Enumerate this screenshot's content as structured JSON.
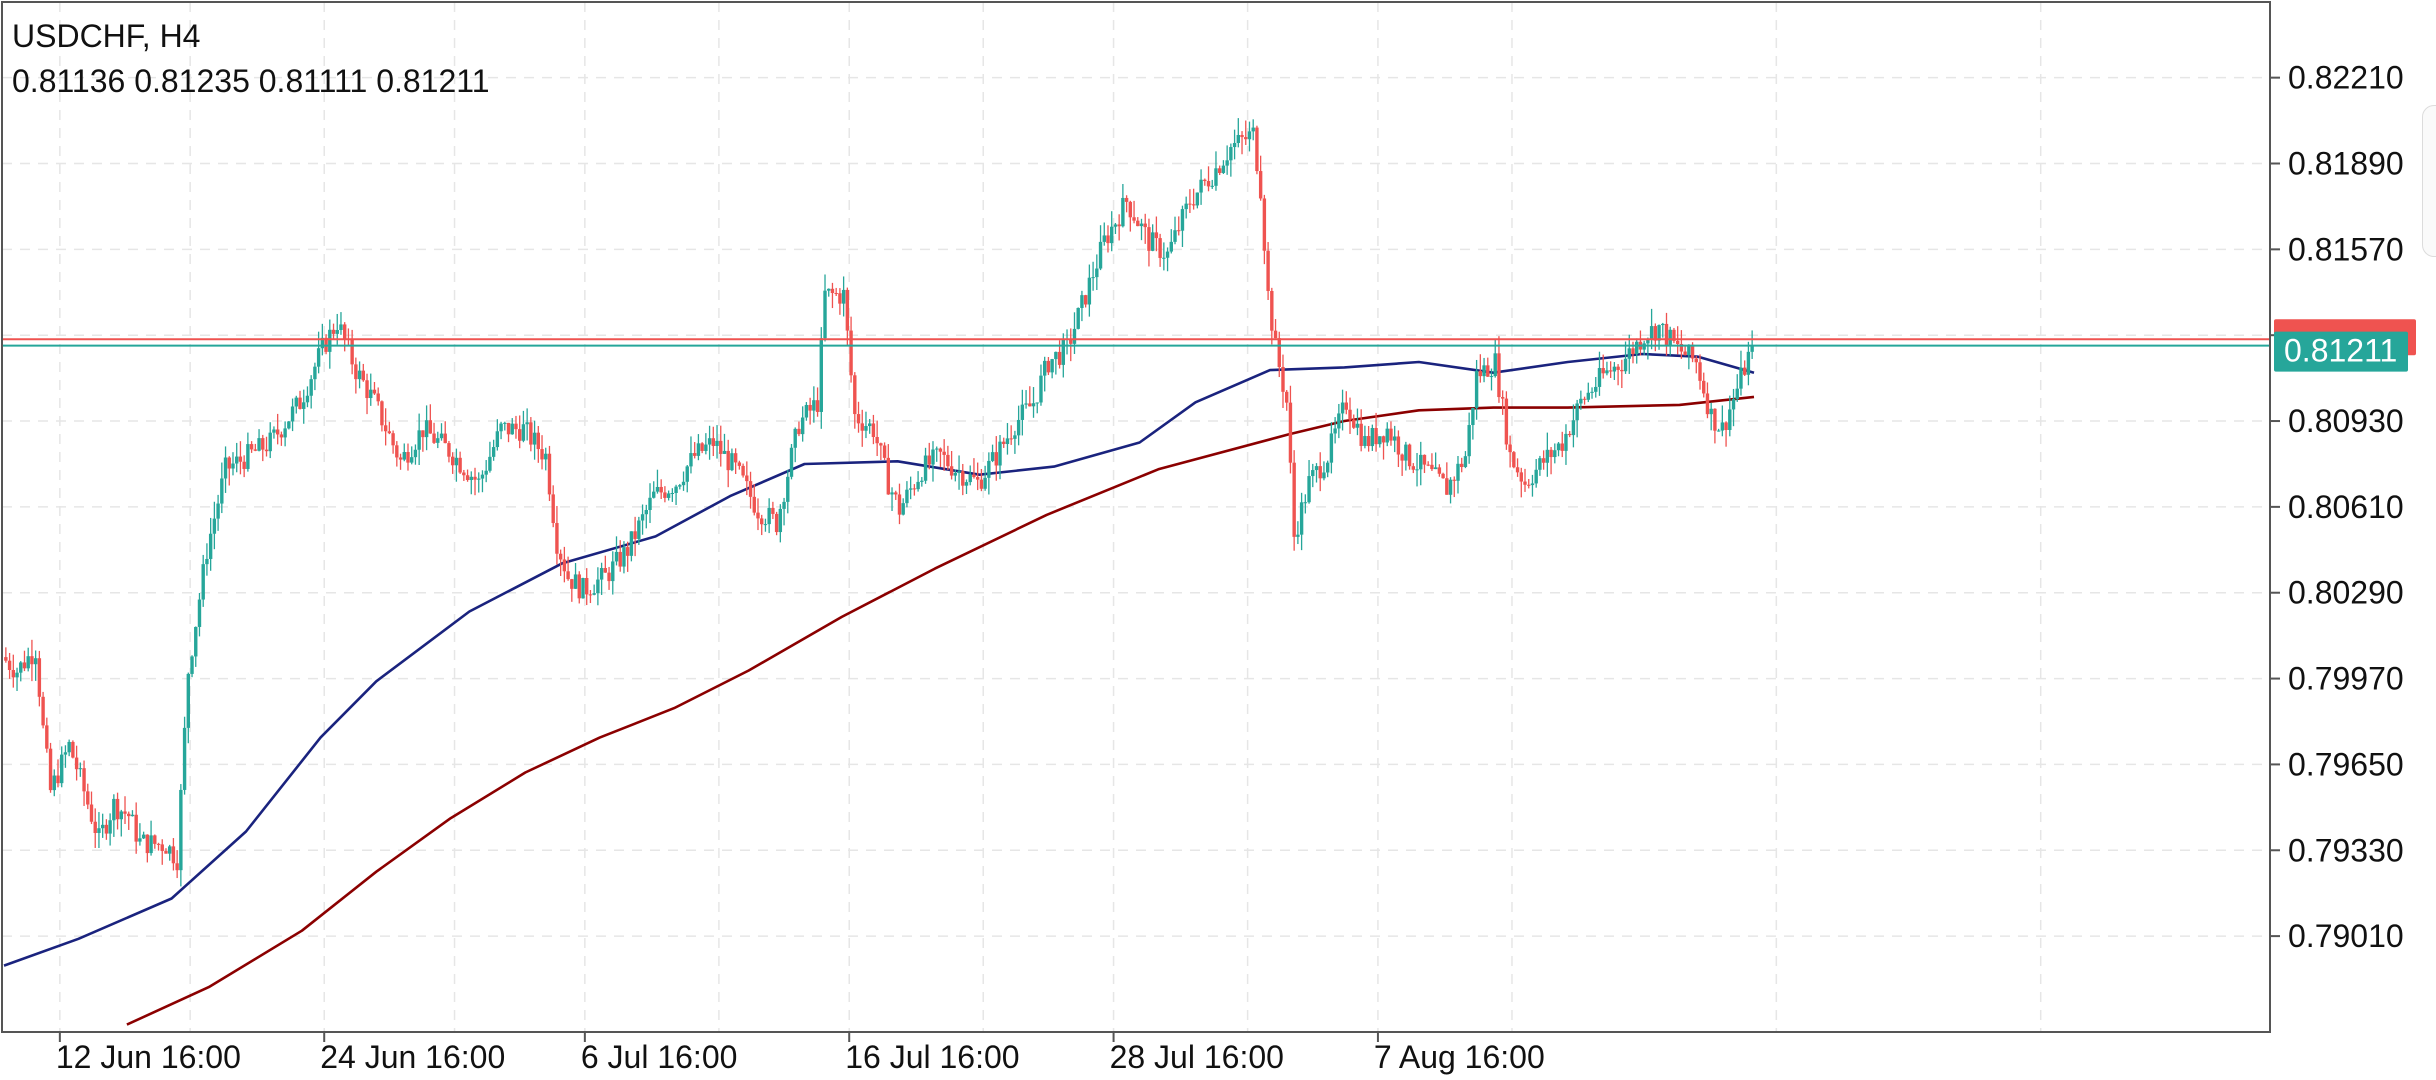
{
  "header": {
    "symbol_timeframe": "USDCHF, H4",
    "ohlc": "0.81136 0.81235 0.81111 0.81211"
  },
  "colors": {
    "bull": "#26a69a",
    "bear": "#ef5350",
    "ma_fast": "#1a237e",
    "ma_slow": "#8b0000",
    "grid": "#e6e6e6",
    "axis": "#555555",
    "ask_line": "#ef5350",
    "bid_line": "#26a69a"
  },
  "chart_data": {
    "type": "candlestick",
    "symbol": "USDCHF",
    "timeframe": "H4",
    "y_ticks": [
      0.8221,
      0.8189,
      0.8157,
      0.8125,
      0.8093,
      0.8061,
      0.8029,
      0.7997,
      0.7965,
      0.7933,
      0.7901
    ],
    "y_tick_labels": [
      "0.82210",
      "0.81890",
      "0.81570",
      "0.81250",
      "0.80930",
      "0.80610",
      "0.80290",
      "0.79970",
      "0.79650",
      "0.79330",
      "0.79010"
    ],
    "ylim": [
      0.7866,
      0.8241
    ],
    "x_tick_labels": [
      "12 Jun 16:00",
      "24 Jun 16:00",
      "6 Jul 16:00",
      "16 Jul 16:00",
      "28 Jul 16:00",
      "7 Aug 16:00"
    ],
    "x_tick_bar_index": [
      15,
      86,
      156,
      227,
      298,
      369
    ],
    "bar_count": 470,
    "current_bid": 0.81211,
    "current_bid_label": "0.81211",
    "current_ask": 0.81235,
    "price_path": [
      [
        0,
        0.8005
      ],
      [
        4,
        0.8
      ],
      [
        9,
        0.8008
      ],
      [
        11,
        0.7978
      ],
      [
        13,
        0.7955
      ],
      [
        18,
        0.7972
      ],
      [
        20,
        0.7964
      ],
      [
        26,
        0.7937
      ],
      [
        30,
        0.795
      ],
      [
        34,
        0.7946
      ],
      [
        37,
        0.7936
      ],
      [
        44,
        0.7935
      ],
      [
        47,
        0.793
      ],
      [
        50,
        0.8
      ],
      [
        55,
        0.8045
      ],
      [
        60,
        0.8075
      ],
      [
        66,
        0.808
      ],
      [
        72,
        0.8085
      ],
      [
        80,
        0.81
      ],
      [
        86,
        0.812
      ],
      [
        90,
        0.813
      ],
      [
        95,
        0.8112
      ],
      [
        100,
        0.81
      ],
      [
        107,
        0.8078
      ],
      [
        113,
        0.809
      ],
      [
        120,
        0.8082
      ],
      [
        128,
        0.807
      ],
      [
        134,
        0.809
      ],
      [
        140,
        0.809
      ],
      [
        146,
        0.808
      ],
      [
        149,
        0.8048
      ],
      [
        152,
        0.8035
      ],
      [
        156,
        0.803
      ],
      [
        162,
        0.8035
      ],
      [
        168,
        0.8045
      ],
      [
        175,
        0.8065
      ],
      [
        181,
        0.807
      ],
      [
        186,
        0.808
      ],
      [
        191,
        0.8085
      ],
      [
        197,
        0.8075
      ],
      [
        203,
        0.806
      ],
      [
        208,
        0.8055
      ],
      [
        214,
        0.8092
      ],
      [
        219,
        0.81
      ],
      [
        221,
        0.814
      ],
      [
        226,
        0.814
      ],
      [
        229,
        0.8095
      ],
      [
        234,
        0.809
      ],
      [
        238,
        0.807
      ],
      [
        241,
        0.806
      ],
      [
        247,
        0.8075
      ],
      [
        252,
        0.808
      ],
      [
        256,
        0.8075
      ],
      [
        262,
        0.807
      ],
      [
        267,
        0.808
      ],
      [
        272,
        0.8092
      ],
      [
        277,
        0.81
      ],
      [
        281,
        0.8115
      ],
      [
        286,
        0.812
      ],
      [
        291,
        0.814
      ],
      [
        296,
        0.816
      ],
      [
        302,
        0.8175
      ],
      [
        308,
        0.816
      ],
      [
        313,
        0.8155
      ],
      [
        319,
        0.8175
      ],
      [
        325,
        0.8185
      ],
      [
        330,
        0.8195
      ],
      [
        336,
        0.82
      ],
      [
        338,
        0.818
      ],
      [
        340,
        0.814
      ],
      [
        342,
        0.812
      ],
      [
        345,
        0.81
      ],
      [
        347,
        0.805
      ],
      [
        351,
        0.807
      ],
      [
        356,
        0.808
      ],
      [
        361,
        0.81
      ],
      [
        366,
        0.8085
      ],
      [
        372,
        0.809
      ],
      [
        377,
        0.808
      ],
      [
        382,
        0.8075
      ],
      [
        388,
        0.8068
      ],
      [
        393,
        0.808
      ],
      [
        396,
        0.811
      ],
      [
        401,
        0.8115
      ],
      [
        405,
        0.808
      ],
      [
        409,
        0.807
      ],
      [
        414,
        0.8078
      ],
      [
        419,
        0.8085
      ],
      [
        424,
        0.81
      ],
      [
        430,
        0.811
      ],
      [
        435,
        0.8115
      ],
      [
        441,
        0.8125
      ],
      [
        445,
        0.8128
      ],
      [
        450,
        0.812
      ],
      [
        455,
        0.8115
      ],
      [
        459,
        0.8095
      ],
      [
        462,
        0.809
      ],
      [
        466,
        0.8105
      ],
      [
        470,
        0.8121
      ]
    ],
    "series": [
      {
        "kind": "moving-average",
        "color": "#1a237e",
        "points": [
          [
            0,
            0.789
          ],
          [
            20,
            0.79
          ],
          [
            45,
            0.7915
          ],
          [
            65,
            0.794
          ],
          [
            85,
            0.7975
          ],
          [
            100,
            0.7996
          ],
          [
            125,
            0.8022
          ],
          [
            150,
            0.804
          ],
          [
            175,
            0.805
          ],
          [
            195,
            0.8065
          ],
          [
            215,
            0.8077
          ],
          [
            240,
            0.8078
          ],
          [
            262,
            0.8073
          ],
          [
            282,
            0.8076
          ],
          [
            305,
            0.8085
          ],
          [
            320,
            0.81
          ],
          [
            340,
            0.8112
          ],
          [
            360,
            0.8113
          ],
          [
            380,
            0.8115
          ],
          [
            400,
            0.8111
          ],
          [
            420,
            0.8115
          ],
          [
            440,
            0.8118
          ],
          [
            455,
            0.8117
          ],
          [
            470,
            0.8111
          ]
        ]
      },
      {
        "kind": "moving-average",
        "color": "#8b0000",
        "points": [
          [
            33,
            0.7868
          ],
          [
            55,
            0.7882
          ],
          [
            80,
            0.7903
          ],
          [
            100,
            0.7925
          ],
          [
            120,
            0.7945
          ],
          [
            140,
            0.7962
          ],
          [
            160,
            0.7975
          ],
          [
            180,
            0.7986
          ],
          [
            200,
            0.8
          ],
          [
            225,
            0.802
          ],
          [
            250,
            0.8038
          ],
          [
            280,
            0.8058
          ],
          [
            310,
            0.8075
          ],
          [
            345,
            0.8088
          ],
          [
            360,
            0.8093
          ],
          [
            380,
            0.8097
          ],
          [
            400,
            0.8098
          ],
          [
            420,
            0.8098
          ],
          [
            450,
            0.8099
          ],
          [
            470,
            0.8102
          ]
        ]
      }
    ]
  }
}
